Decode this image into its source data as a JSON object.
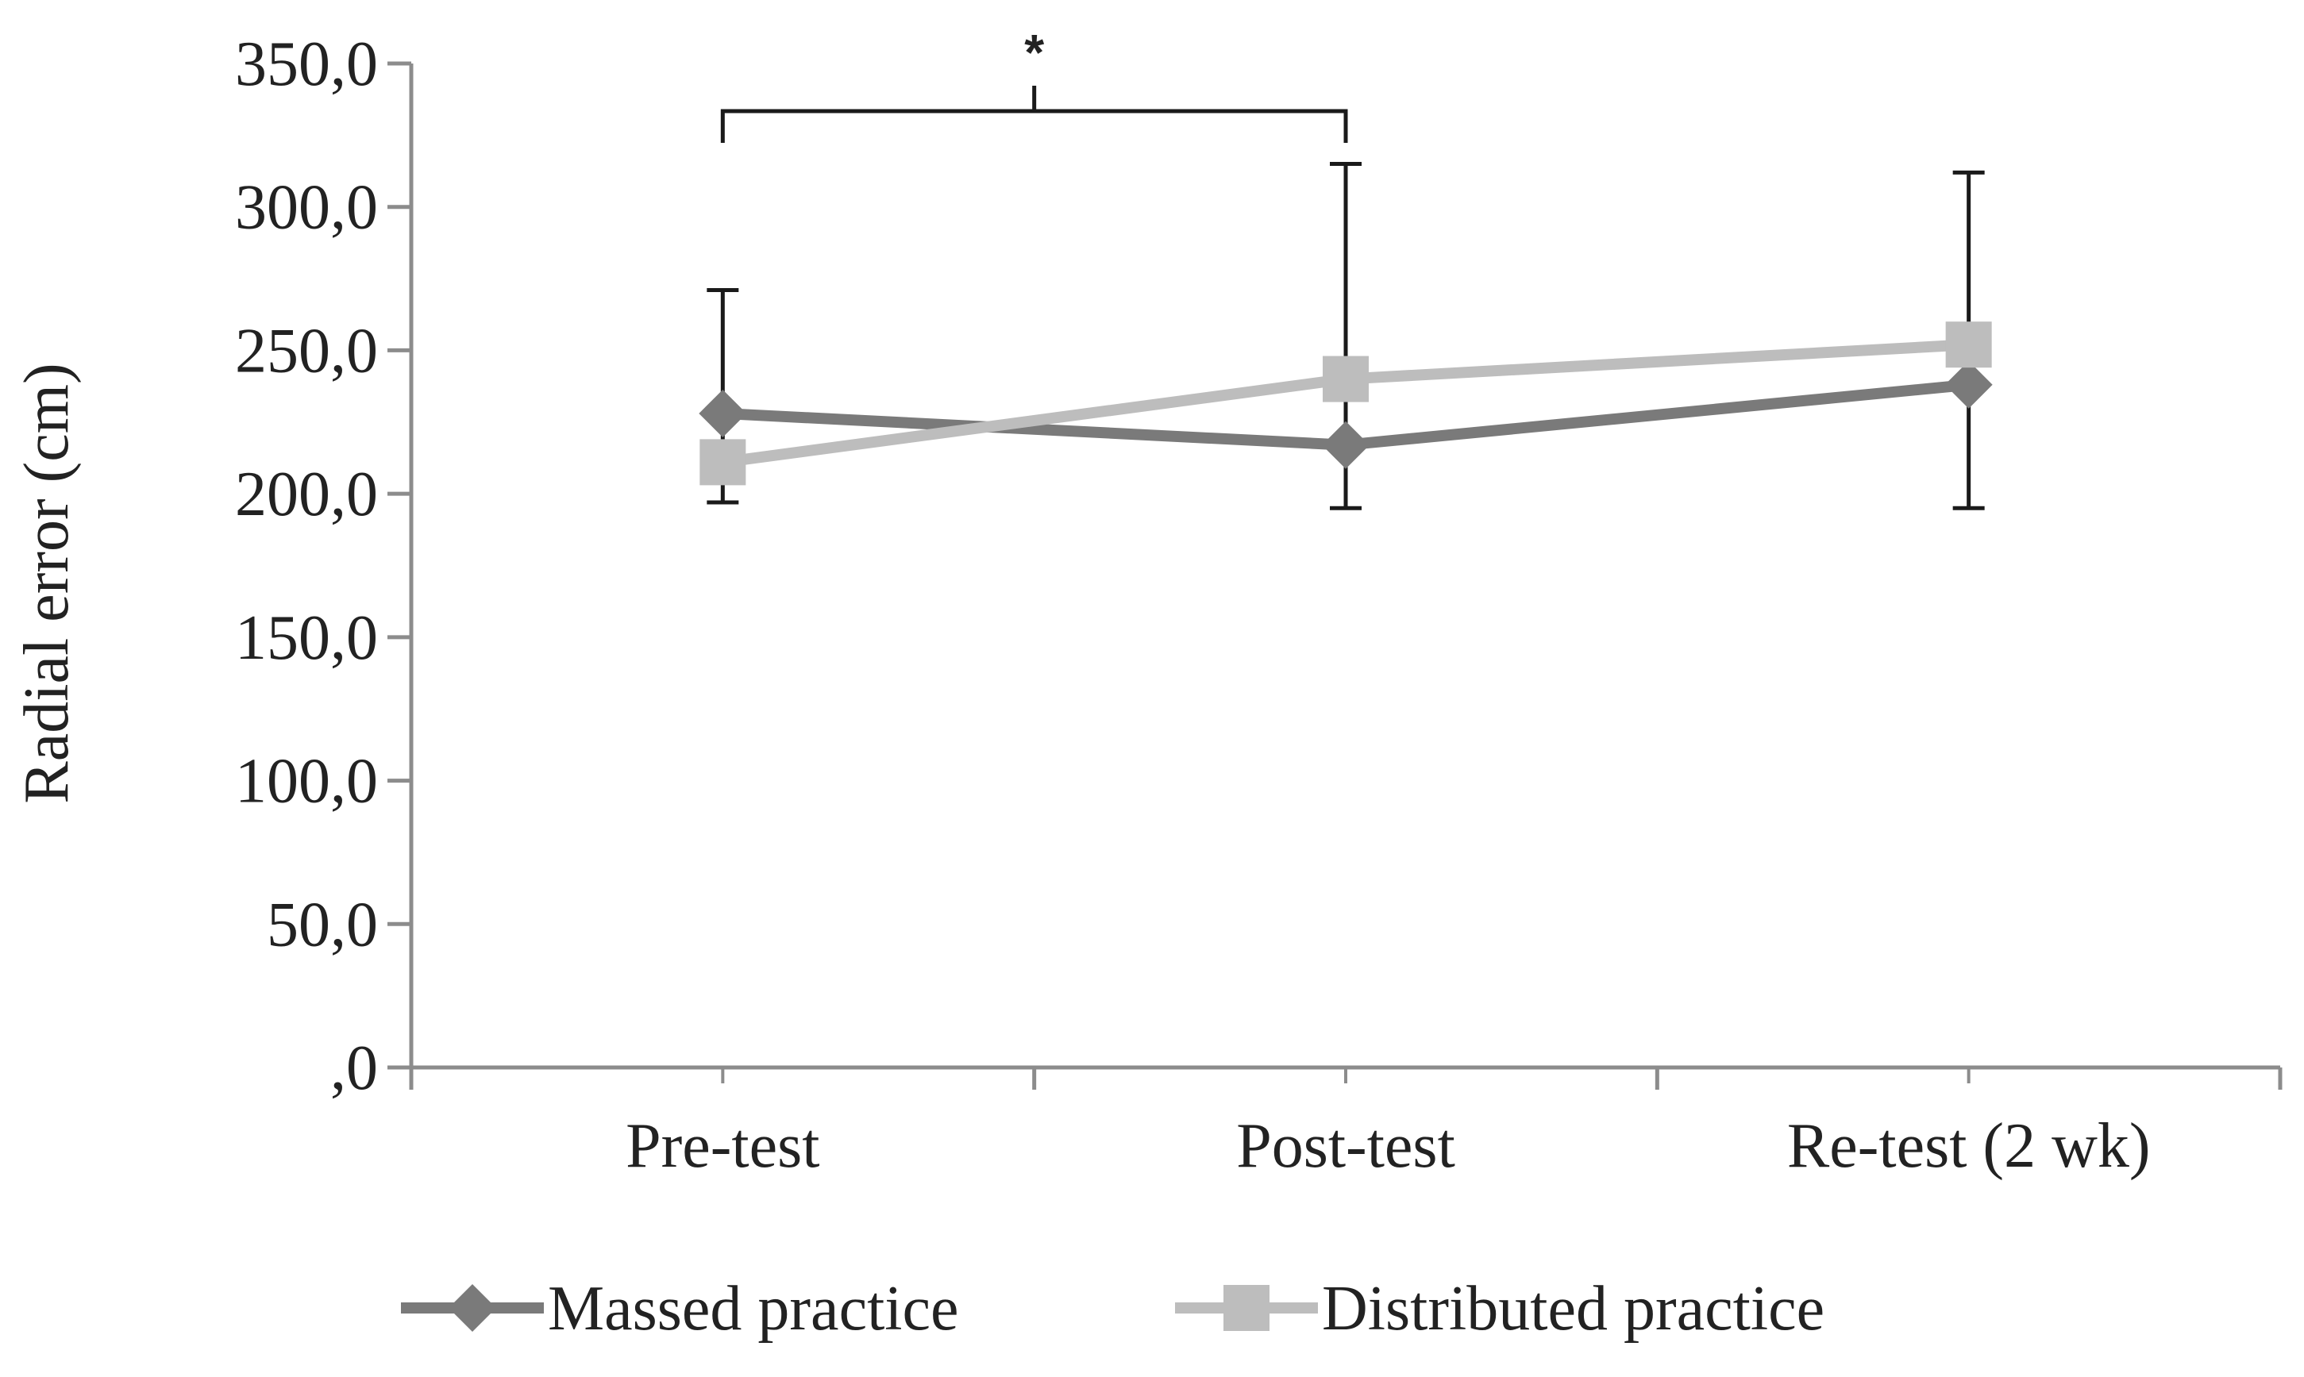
{
  "chart_data": {
    "type": "line",
    "title": "",
    "xlabel": "",
    "ylabel": "Radial error (cm)",
    "categories": [
      "Pre-test",
      "Post-test",
      "Re-test (2 wk)"
    ],
    "ylim": [
      0,
      350
    ],
    "yticks": [
      0,
      50,
      100,
      150,
      200,
      250,
      300,
      350
    ],
    "ytick_labels": [
      ",0",
      "50,0",
      "100,0",
      "150,0",
      "200,0",
      "250,0",
      "300,0",
      "350,0"
    ],
    "grid": false,
    "legend_position": "bottom",
    "series": [
      {
        "name": "Massed practice",
        "values": [
          228,
          217,
          238
        ],
        "color": "#7a7a7a",
        "marker": "diamond",
        "error_bar_low": [
          197,
          195,
          195
        ],
        "error_bar_high": [
          271,
          315,
          312
        ]
      },
      {
        "name": "Distributed practice",
        "values": [
          211,
          240,
          252
        ],
        "color": "#bdbdbd",
        "marker": "square"
      }
    ],
    "annotations": [
      {
        "text": "*",
        "from": "Pre-test",
        "to": "Post-test"
      }
    ],
    "axis_color": "#8c8c8c",
    "error_bar_color": "#1a1a1a"
  }
}
